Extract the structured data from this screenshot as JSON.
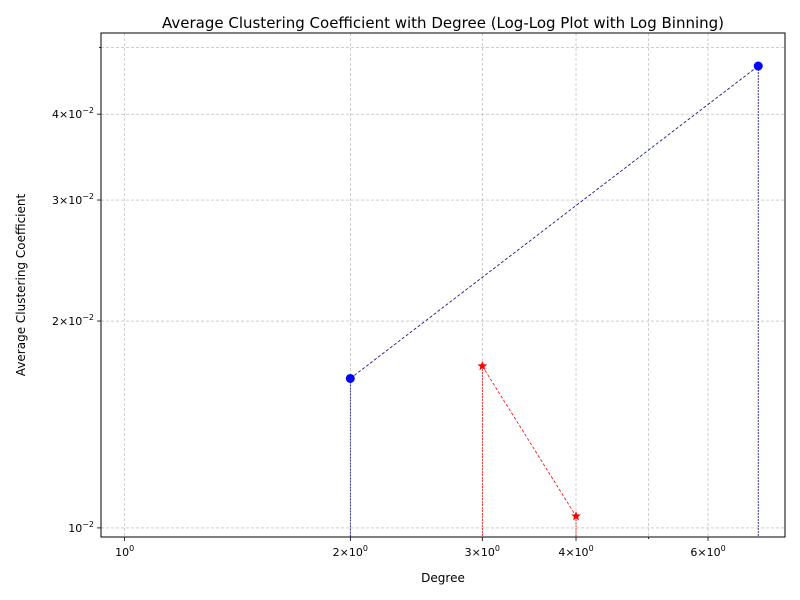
{
  "chart_data": {
    "type": "scatter",
    "title": "Average Clustering Coefficient with Degree (Log-Log Plot with Log Binning)",
    "xlabel": "Degree",
    "ylabel": "Average Clustering Coefficient",
    "xscale": "log",
    "yscale": "log",
    "xlim": [
      0.93,
      7.6
    ],
    "ylim": [
      0.0097,
      0.0525
    ],
    "grid": true,
    "x_ticks": [
      {
        "value": 1,
        "label": "10⁰",
        "base": "10",
        "exp": "0"
      },
      {
        "value": 2,
        "label": "2×10⁰",
        "mant": "2",
        "base": "10",
        "exp": "0"
      },
      {
        "value": 3,
        "label": "3×10⁰",
        "mant": "3",
        "base": "10",
        "exp": "0"
      },
      {
        "value": 4,
        "label": "4×10⁰",
        "mant": "4",
        "base": "10",
        "exp": "0"
      },
      {
        "value": 6,
        "label": "6×10⁰",
        "mant": "6",
        "base": "10",
        "exp": "0"
      }
    ],
    "x_minor_ticks": [
      5
    ],
    "y_ticks": [
      {
        "value": 0.01,
        "label": "10⁻²",
        "base": "10",
        "exp": "−2"
      },
      {
        "value": 0.02,
        "label": "2×10⁻²",
        "mant": "2",
        "base": "10",
        "exp": "−2"
      },
      {
        "value": 0.03,
        "label": "3×10⁻²",
        "mant": "3",
        "base": "10",
        "exp": "−2"
      },
      {
        "value": 0.04,
        "label": "4×10⁻²",
        "mant": "4",
        "base": "10",
        "exp": "−2"
      }
    ],
    "y_minor_ticks": [
      0.05
    ],
    "series": [
      {
        "color": "#0000ff",
        "marker": "circle",
        "line_color": "#00008b",
        "points": [
          {
            "x": 2,
            "y": 0.0165
          },
          {
            "x": 7,
            "y": 0.047
          }
        ]
      },
      {
        "color": "#ff0000",
        "marker": "star",
        "line_color": "#ff0000",
        "points": [
          {
            "x": 3,
            "y": 0.0172
          },
          {
            "x": 4,
            "y": 0.0104
          }
        ]
      }
    ]
  }
}
